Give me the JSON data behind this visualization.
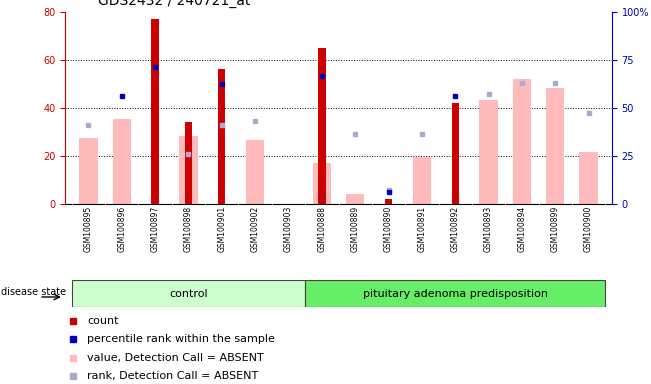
{
  "title": "GDS2432 / 240721_at",
  "samples": [
    "GSM100895",
    "GSM100896",
    "GSM100897",
    "GSM100898",
    "GSM100901",
    "GSM100902",
    "GSM100903",
    "GSM100888",
    "GSM100889",
    "GSM100890",
    "GSM100891",
    "GSM100892",
    "GSM100893",
    "GSM100894",
    "GSM100899",
    "GSM100900"
  ],
  "group_labels": [
    "control",
    "pituitary adenoma predisposition"
  ],
  "ctrl_count": 7,
  "aden_count": 9,
  "red_bars": [
    0,
    0,
    77,
    34,
    56,
    0,
    0,
    65,
    0,
    2,
    0,
    42,
    0,
    0,
    0,
    0
  ],
  "pink_bars": [
    34,
    44,
    0,
    35,
    0,
    33,
    0,
    21,
    5,
    0,
    24,
    0,
    54,
    65,
    60,
    27
  ],
  "blue_squares": [
    0,
    45,
    57,
    0,
    50,
    0,
    0,
    53,
    0,
    5,
    0,
    45,
    0,
    0,
    0,
    0
  ],
  "light_blue_sq": [
    41,
    0,
    0,
    26,
    41,
    43,
    0,
    0,
    36,
    7,
    36,
    0,
    57,
    63,
    63,
    47
  ],
  "ylim_left": [
    0,
    80
  ],
  "ylim_right": [
    0,
    100
  ],
  "yticks_left": [
    0,
    20,
    40,
    60,
    80
  ],
  "yticks_right": [
    0,
    25,
    50,
    75,
    100
  ],
  "ytick_labels_right": [
    "0",
    "25",
    "50",
    "75",
    "100%"
  ],
  "red_color": "#cc0000",
  "pink_color": "#ffbbbb",
  "blue_color": "#0000bb",
  "light_blue_color": "#aaaacc",
  "control_bg": "#ccffcc",
  "adenoma_bg": "#66ee66",
  "title_fontsize": 10,
  "tick_fontsize": 7,
  "legend_fontsize": 8,
  "label_fontsize": 5.5
}
